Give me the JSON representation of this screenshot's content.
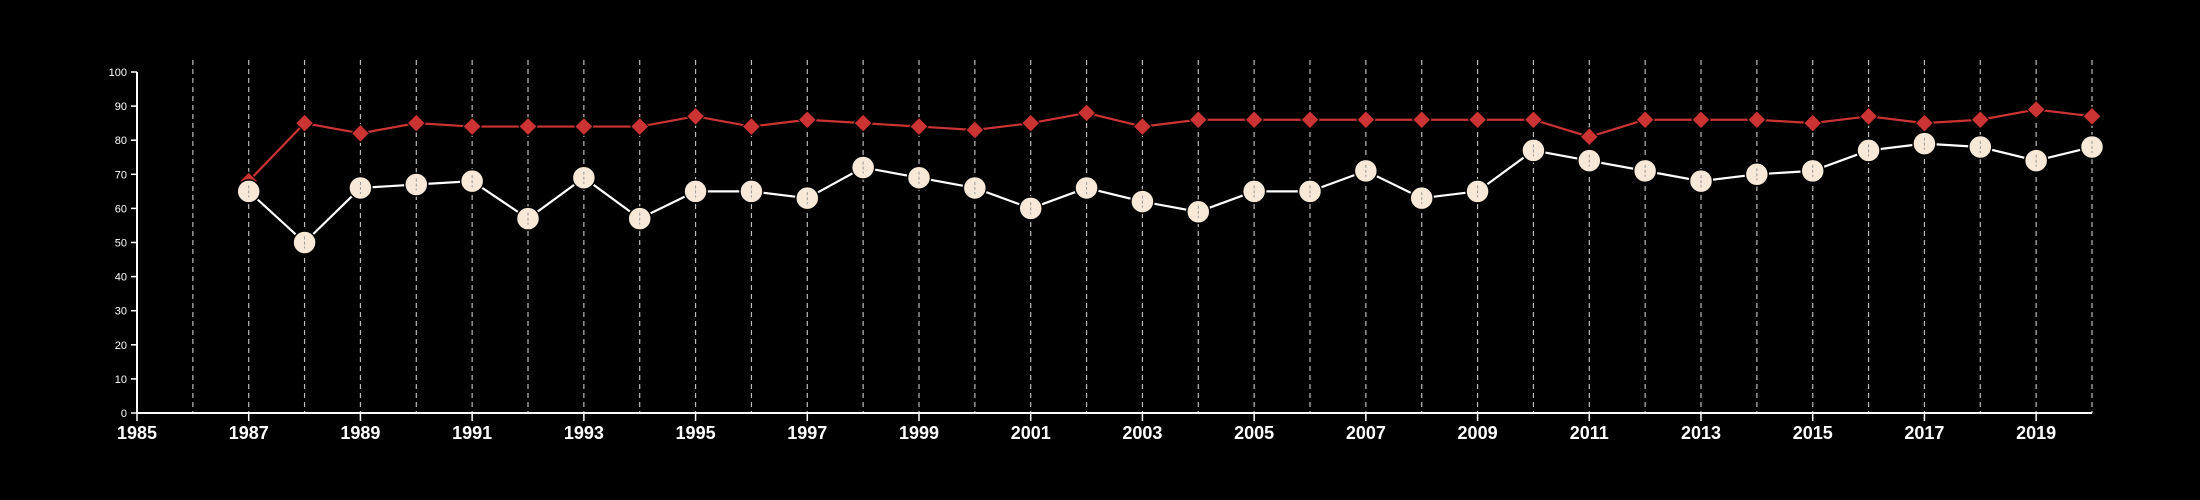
{
  "chart_data": {
    "type": "line",
    "title": "",
    "xlabel": "",
    "ylabel": "",
    "xlim": [
      1985,
      2020
    ],
    "ylim": [
      0,
      100
    ],
    "x_tick_labels": [
      "1985",
      "1987",
      "1989",
      "1991",
      "1993",
      "1995",
      "1997",
      "1999",
      "2001",
      "2003",
      "2005",
      "2007",
      "2009",
      "2011",
      "2013",
      "2015",
      "2017",
      "2019"
    ],
    "y_tick_labels": [
      "0",
      "10",
      "20",
      "30",
      "40",
      "50",
      "60",
      "70",
      "80",
      "90",
      "100"
    ],
    "grid": "vertical dashed lines at every year",
    "legend": "none",
    "x": [
      1987,
      1988,
      1989,
      1990,
      1991,
      1992,
      1993,
      1994,
      1995,
      1996,
      1997,
      1998,
      1999,
      2000,
      2001,
      2002,
      2003,
      2004,
      2005,
      2006,
      2007,
      2008,
      2009,
      2010,
      2011,
      2012,
      2013,
      2014,
      2015,
      2016,
      2017,
      2018,
      2019,
      2020
    ],
    "series": [
      {
        "marker": "diamond",
        "color": "#cc3333",
        "values": [
          68,
          85,
          82,
          85,
          84,
          84,
          84,
          84,
          87,
          84,
          86,
          85,
          84,
          83,
          85,
          88,
          84,
          86,
          86,
          86,
          86,
          86,
          86,
          86,
          81,
          86,
          86,
          86,
          85,
          87,
          85,
          86,
          89,
          87
        ]
      },
      {
        "marker": "circle",
        "color": "#ffffff",
        "marker_fill": "#f8e8d8",
        "values": [
          65,
          50,
          66,
          67,
          68,
          57,
          69,
          57,
          65,
          65,
          63,
          72,
          69,
          66,
          60,
          66,
          62,
          59,
          65,
          65,
          71,
          63,
          65,
          77,
          74,
          71,
          68,
          70,
          71,
          77,
          79,
          78,
          74,
          78
        ]
      }
    ]
  }
}
